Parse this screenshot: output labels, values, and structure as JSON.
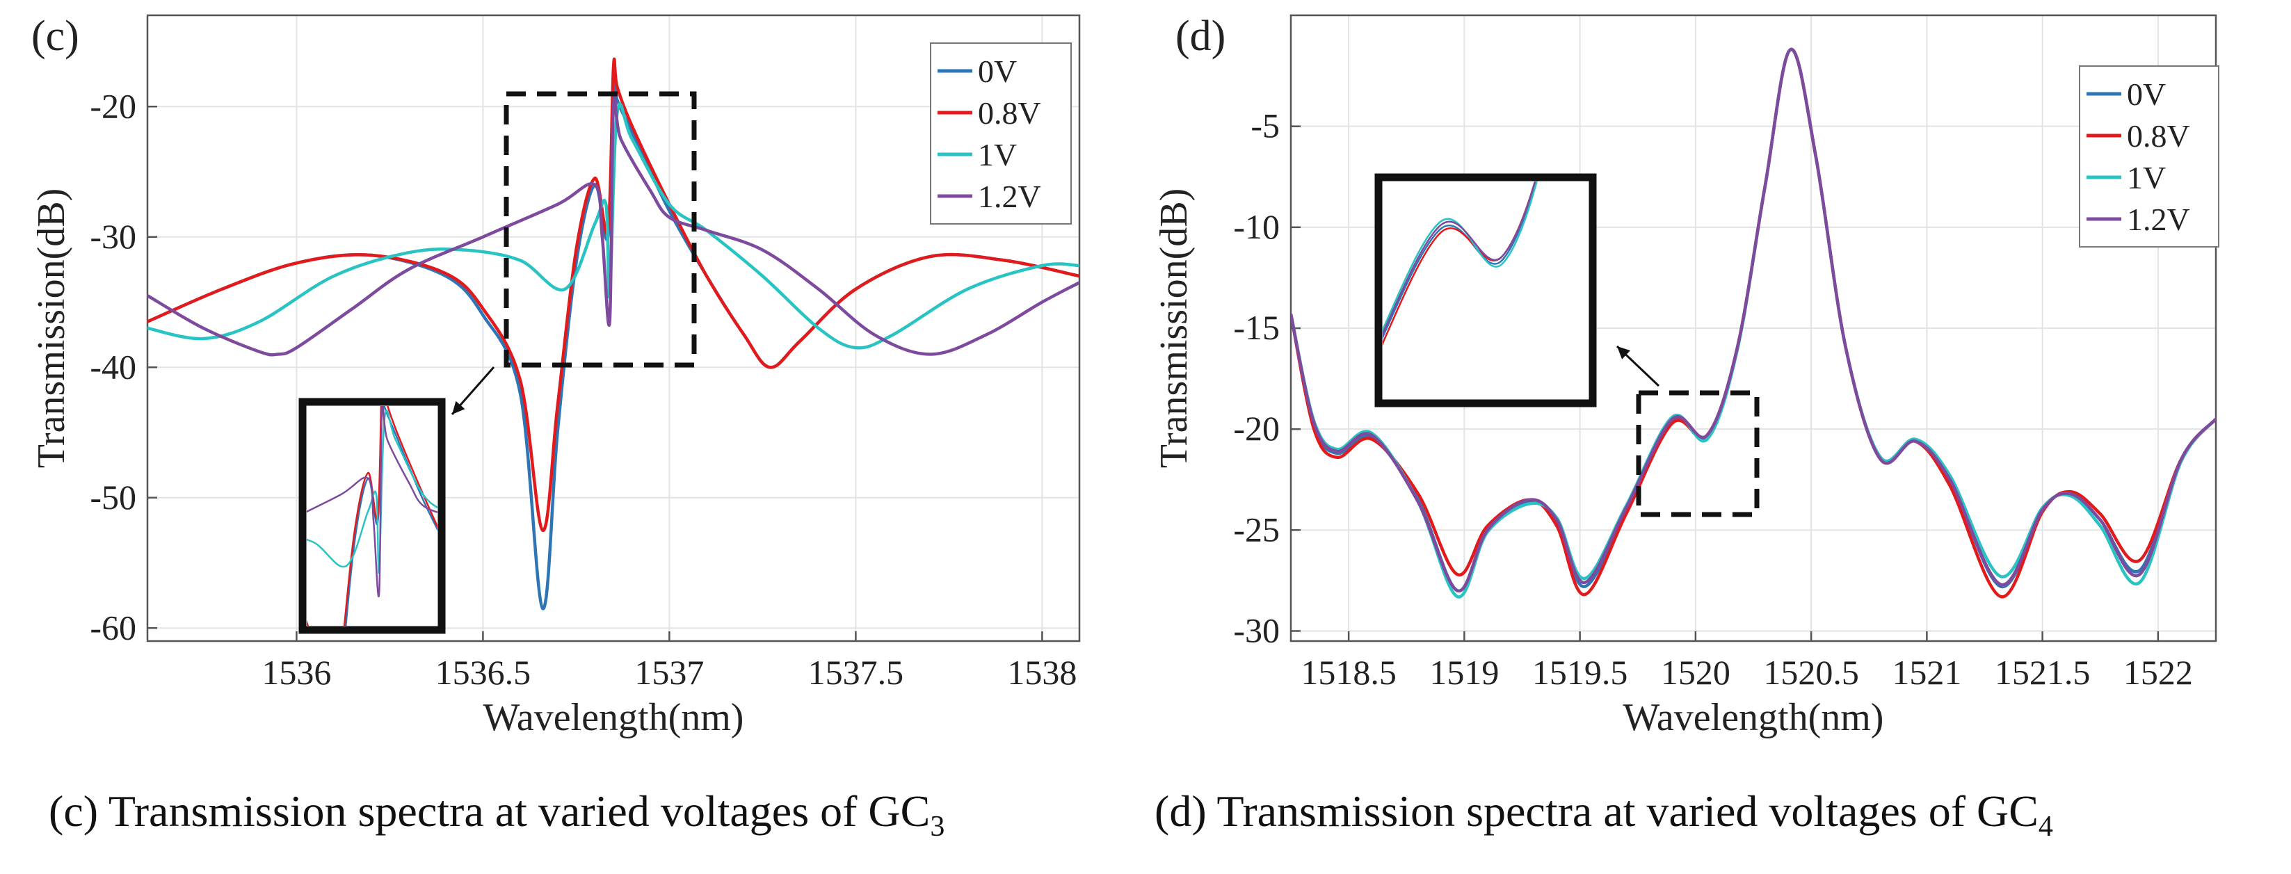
{
  "chart_data": [
    {
      "type": "line",
      "panel_label": "(c)",
      "xlabel": "Wavelength(nm)",
      "ylabel": "Transmission(dB)",
      "xlim": [
        1535.6,
        1538.1
      ],
      "ylim": [
        -61,
        -13
      ],
      "xticks": [
        1536,
        1536.5,
        1537,
        1537.5,
        1538
      ],
      "xtick_labels": [
        "1536",
        "1536.5",
        "1537",
        "1537.5",
        "1538"
      ],
      "yticks": [
        -60,
        -50,
        -40,
        -30,
        -20
      ],
      "ytick_labels": [
        "-60",
        "-50",
        "-40",
        "-30",
        "-20"
      ],
      "grid": true,
      "legend_position": "top-right",
      "series": [
        {
          "name": "0V",
          "color": "#2e75b6",
          "x": [
            1535.6,
            1535.8,
            1536.0,
            1536.2,
            1536.4,
            1536.5,
            1536.6,
            1536.66,
            1536.7,
            1536.75,
            1536.8,
            1536.835,
            1536.85,
            1536.86,
            1536.9,
            1537.0,
            1537.1,
            1537.2,
            1537.27,
            1537.35,
            1537.5,
            1537.7,
            1537.9,
            1538.1
          ],
          "y": [
            -36.5,
            -34.0,
            -32.0,
            -31.4,
            -33.0,
            -36.0,
            -42.0,
            -58.5,
            -45.0,
            -32.0,
            -26.0,
            -30.0,
            -18.0,
            -19.5,
            -22.0,
            -28.0,
            -33.0,
            -37.5,
            -40.0,
            -38.0,
            -34.0,
            -31.5,
            -31.8,
            -33.0
          ]
        },
        {
          "name": "0.8V",
          "color": "#e31a1c",
          "x": [
            1535.6,
            1535.8,
            1536.0,
            1536.2,
            1536.4,
            1536.5,
            1536.6,
            1536.66,
            1536.7,
            1536.75,
            1536.8,
            1536.835,
            1536.85,
            1536.86,
            1536.9,
            1537.0,
            1537.1,
            1537.2,
            1537.27,
            1537.35,
            1537.5,
            1537.7,
            1537.9,
            1538.1
          ],
          "y": [
            -36.5,
            -34.0,
            -32.0,
            -31.4,
            -32.8,
            -35.5,
            -41.0,
            -52.5,
            -43.0,
            -31.0,
            -25.5,
            -29.5,
            -17.0,
            -18.5,
            -21.5,
            -27.5,
            -33.0,
            -37.5,
            -40.0,
            -38.0,
            -34.0,
            -31.5,
            -31.8,
            -33.0
          ]
        },
        {
          "name": "1V",
          "color": "#2ac3c3",
          "x": [
            1535.6,
            1535.75,
            1535.9,
            1536.1,
            1536.3,
            1536.45,
            1536.6,
            1536.72,
            1536.8,
            1536.83,
            1536.84,
            1536.86,
            1536.9,
            1537.0,
            1537.1,
            1537.25,
            1537.4,
            1537.5,
            1537.6,
            1537.8,
            1538.0,
            1538.1
          ],
          "y": [
            -37.0,
            -37.8,
            -36.5,
            -33.0,
            -31.2,
            -31.0,
            -31.8,
            -34.0,
            -29.0,
            -27.5,
            -34.5,
            -20.5,
            -22.5,
            -27.5,
            -29.5,
            -33.0,
            -37.0,
            -38.5,
            -37.5,
            -34.0,
            -32.2,
            -32.2
          ]
        },
        {
          "name": "1.2V",
          "color": "#7e4a9e",
          "x": [
            1535.6,
            1535.75,
            1535.9,
            1535.95,
            1536.0,
            1536.15,
            1536.3,
            1536.5,
            1536.7,
            1536.8,
            1536.82,
            1536.84,
            1536.85,
            1536.87,
            1536.95,
            1537.0,
            1537.1,
            1537.25,
            1537.4,
            1537.55,
            1537.7,
            1537.85,
            1538.0,
            1538.1
          ],
          "y": [
            -34.5,
            -37.0,
            -38.8,
            -39.0,
            -38.5,
            -35.5,
            -32.5,
            -30.0,
            -27.5,
            -26.0,
            -30.0,
            -36.5,
            -20.0,
            -22.5,
            -26.5,
            -28.5,
            -29.5,
            -31.0,
            -34.0,
            -37.5,
            -39.0,
            -37.5,
            -35.0,
            -33.5
          ]
        }
      ]
    },
    {
      "type": "line",
      "panel_label": "(d)",
      "xlabel": "Wavelength(nm)",
      "ylabel": "Transmission(dB)",
      "xlim": [
        1518.25,
        1522.25
      ],
      "ylim": [
        -30.5,
        0.5
      ],
      "xticks": [
        1518.5,
        1519,
        1519.5,
        1520,
        1520.5,
        1521,
        1521.5,
        1522
      ],
      "xtick_labels": [
        "1518.5",
        "1519",
        "1519.5",
        "1520",
        "1520.5",
        "1521",
        "1521.5",
        "1522"
      ],
      "yticks": [
        -30,
        -25,
        -20,
        -15,
        -10,
        -5
      ],
      "ytick_labels": [
        "-30",
        "-25",
        "-20",
        "-15",
        "-10",
        "-5"
      ],
      "grid": true,
      "legend_position": "top-right",
      "series": [
        {
          "name": "0V",
          "color": "#2e75b6",
          "x": [
            1518.25,
            1518.35,
            1518.45,
            1518.6,
            1518.8,
            1518.97,
            1519.1,
            1519.28,
            1519.4,
            1519.52,
            1519.7,
            1519.9,
            1520.05,
            1520.18,
            1520.3,
            1520.41,
            1520.52,
            1520.65,
            1520.8,
            1520.95,
            1521.1,
            1521.32,
            1521.5,
            1521.62,
            1521.75,
            1521.92,
            1522.1,
            1522.25
          ],
          "y": [
            -14.3,
            -19.8,
            -21.2,
            -20.4,
            -23.5,
            -28.0,
            -25.0,
            -23.6,
            -24.6,
            -27.8,
            -24.0,
            -19.6,
            -20.4,
            -16.0,
            -8.0,
            -1.2,
            -6.5,
            -16.0,
            -21.5,
            -20.6,
            -22.5,
            -27.8,
            -24.0,
            -23.2,
            -24.5,
            -27.0,
            -21.5,
            -19.5
          ]
        },
        {
          "name": "0.8V",
          "color": "#e31a1c",
          "x": [
            1518.25,
            1518.35,
            1518.45,
            1518.6,
            1518.8,
            1518.97,
            1519.1,
            1519.28,
            1519.4,
            1519.52,
            1519.7,
            1519.9,
            1520.05,
            1520.18,
            1520.3,
            1520.41,
            1520.52,
            1520.65,
            1520.8,
            1520.95,
            1521.1,
            1521.32,
            1521.5,
            1521.62,
            1521.75,
            1521.92,
            1522.1,
            1522.25
          ],
          "y": [
            -14.3,
            -20.0,
            -21.4,
            -20.5,
            -23.2,
            -27.2,
            -24.8,
            -23.5,
            -24.8,
            -28.2,
            -24.2,
            -19.7,
            -20.3,
            -16.0,
            -8.0,
            -1.2,
            -6.5,
            -16.0,
            -21.5,
            -20.6,
            -22.8,
            -28.3,
            -24.1,
            -23.1,
            -24.2,
            -26.5,
            -21.5,
            -19.5
          ]
        },
        {
          "name": "1V",
          "color": "#2ac3c3",
          "x": [
            1518.25,
            1518.35,
            1518.45,
            1518.6,
            1518.8,
            1518.97,
            1519.1,
            1519.28,
            1519.4,
            1519.52,
            1519.7,
            1519.9,
            1520.05,
            1520.18,
            1520.3,
            1520.41,
            1520.52,
            1520.65,
            1520.8,
            1520.95,
            1521.1,
            1521.32,
            1521.5,
            1521.62,
            1521.75,
            1521.92,
            1522.1,
            1522.25
          ],
          "y": [
            -14.3,
            -19.6,
            -21.0,
            -20.2,
            -23.6,
            -28.3,
            -25.1,
            -23.7,
            -24.4,
            -27.4,
            -23.8,
            -19.4,
            -20.5,
            -16.1,
            -8.0,
            -1.2,
            -6.5,
            -16.0,
            -21.4,
            -20.5,
            -22.3,
            -27.3,
            -23.9,
            -23.3,
            -24.8,
            -27.6,
            -21.6,
            -19.5
          ]
        },
        {
          "name": "1.2V",
          "color": "#7e4a9e",
          "x": [
            1518.25,
            1518.35,
            1518.45,
            1518.6,
            1518.8,
            1518.97,
            1519.1,
            1519.28,
            1519.4,
            1519.52,
            1519.7,
            1519.9,
            1520.05,
            1520.18,
            1520.3,
            1520.41,
            1520.52,
            1520.65,
            1520.8,
            1520.95,
            1521.1,
            1521.32,
            1521.5,
            1521.62,
            1521.75,
            1521.92,
            1522.1,
            1522.25
          ],
          "y": [
            -14.3,
            -19.7,
            -21.1,
            -20.3,
            -23.6,
            -28.0,
            -25.0,
            -23.5,
            -24.5,
            -27.6,
            -23.9,
            -19.5,
            -20.3,
            -16.0,
            -8.0,
            -1.2,
            -6.5,
            -16.0,
            -21.5,
            -20.6,
            -22.5,
            -27.7,
            -24.0,
            -23.2,
            -24.5,
            -27.2,
            -21.5,
            -19.5
          ]
        }
      ]
    }
  ],
  "captions": {
    "c_main": "(c) Transmission  spectra at varied voltages of GC",
    "c_sub": "3",
    "d_main": "(d) Transmission  spectra at varied voltages of GC",
    "d_sub": "4"
  }
}
